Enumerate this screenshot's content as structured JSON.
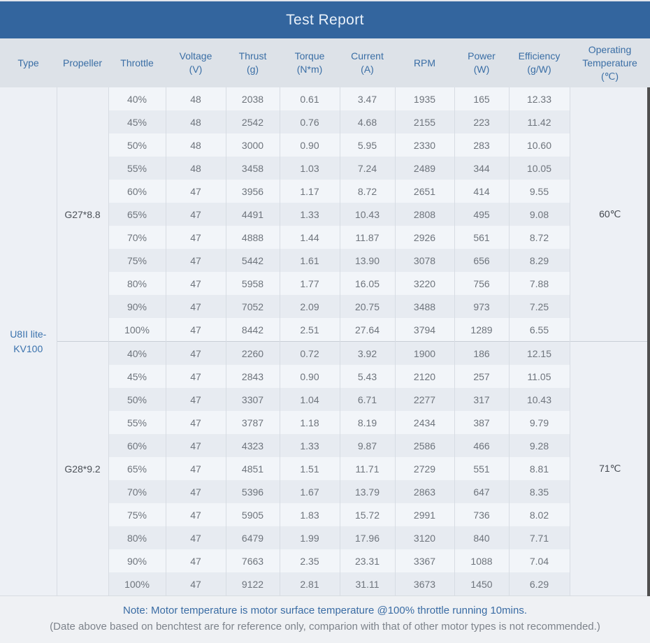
{
  "title": "Test Report",
  "table": {
    "columns": [
      {
        "key": "type",
        "label": "Type"
      },
      {
        "key": "propeller",
        "label": "Propeller"
      },
      {
        "key": "throttle",
        "label": "Throttle"
      },
      {
        "key": "voltage",
        "label": "Voltage\n(V)"
      },
      {
        "key": "thrust",
        "label": "Thrust\n(g)"
      },
      {
        "key": "torque",
        "label": "Torque\n(N*m)"
      },
      {
        "key": "current",
        "label": "Current\n(A)"
      },
      {
        "key": "rpm",
        "label": "RPM"
      },
      {
        "key": "power",
        "label": "Power\n(W)"
      },
      {
        "key": "efficiency",
        "label": "Efficiency\n(g/W)"
      },
      {
        "key": "operating_temperature",
        "label": "Operating\nTemperature\n(℃)"
      }
    ],
    "type_label": "U8II lite-KV100",
    "sections": [
      {
        "propeller": "G27*8.8",
        "operating_temperature": "60℃",
        "rows": [
          [
            "40%",
            "48",
            "2038",
            "0.61",
            "3.47",
            "1935",
            "165",
            "12.33"
          ],
          [
            "45%",
            "48",
            "2542",
            "0.76",
            "4.68",
            "2155",
            "223",
            "11.42"
          ],
          [
            "50%",
            "48",
            "3000",
            "0.90",
            "5.95",
            "2330",
            "283",
            "10.60"
          ],
          [
            "55%",
            "48",
            "3458",
            "1.03",
            "7.24",
            "2489",
            "344",
            "10.05"
          ],
          [
            "60%",
            "47",
            "3956",
            "1.17",
            "8.72",
            "2651",
            "414",
            "9.55"
          ],
          [
            "65%",
            "47",
            "4491",
            "1.33",
            "10.43",
            "2808",
            "495",
            "9.08"
          ],
          [
            "70%",
            "47",
            "4888",
            "1.44",
            "11.87",
            "2926",
            "561",
            "8.72"
          ],
          [
            "75%",
            "47",
            "5442",
            "1.61",
            "13.90",
            "3078",
            "656",
            "8.29"
          ],
          [
            "80%",
            "47",
            "5958",
            "1.77",
            "16.05",
            "3220",
            "756",
            "7.88"
          ],
          [
            "90%",
            "47",
            "7052",
            "2.09",
            "20.75",
            "3488",
            "973",
            "7.25"
          ],
          [
            "100%",
            "47",
            "8442",
            "2.51",
            "27.64",
            "3794",
            "1289",
            "6.55"
          ]
        ]
      },
      {
        "propeller": "G28*9.2",
        "operating_temperature": "71℃",
        "rows": [
          [
            "40%",
            "47",
            "2260",
            "0.72",
            "3.92",
            "1900",
            "186",
            "12.15"
          ],
          [
            "45%",
            "47",
            "2843",
            "0.90",
            "5.43",
            "2120",
            "257",
            "11.05"
          ],
          [
            "50%",
            "47",
            "3307",
            "1.04",
            "6.71",
            "2277",
            "317",
            "10.43"
          ],
          [
            "55%",
            "47",
            "3787",
            "1.18",
            "8.19",
            "2434",
            "387",
            "9.79"
          ],
          [
            "60%",
            "47",
            "4323",
            "1.33",
            "9.87",
            "2586",
            "466",
            "9.28"
          ],
          [
            "65%",
            "47",
            "4851",
            "1.51",
            "11.71",
            "2729",
            "551",
            "8.81"
          ],
          [
            "70%",
            "47",
            "5396",
            "1.67",
            "13.79",
            "2863",
            "647",
            "8.35"
          ],
          [
            "75%",
            "47",
            "5905",
            "1.83",
            "15.72",
            "2991",
            "736",
            "8.02"
          ],
          [
            "80%",
            "47",
            "6479",
            "1.99",
            "17.96",
            "3120",
            "840",
            "7.71"
          ],
          [
            "90%",
            "47",
            "7663",
            "2.35",
            "23.31",
            "3367",
            "1088",
            "7.04"
          ],
          [
            "100%",
            "47",
            "9122",
            "2.81",
            "31.11",
            "3673",
            "1450",
            "6.29"
          ]
        ]
      }
    ]
  },
  "notes": {
    "line1": "Note: Motor temperature is motor surface temperature @100% throttle running 10mins.",
    "line2": "(Date above based on benchtest are for reference only, comparion with that of other motor types is not recommended.)"
  },
  "colors": {
    "title_bar": "#33659E",
    "title_text": "#E9F1FA",
    "header_bg": "#DDE2E8",
    "header_text": "#3A6EA5",
    "row_light": "#F2F5F9",
    "row_shade": "#E7EBF1",
    "span_cell_bg": "#EDF0F5",
    "type_text": "#3A72AD",
    "note_blue": "#3A6CA4",
    "note_gray": "#7D838B",
    "scrollbar": "#4F4F4F"
  }
}
